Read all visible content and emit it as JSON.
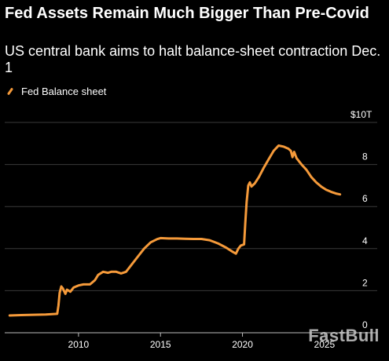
{
  "title": "Fed Assets Remain Much Bigger Than Pre-Covid",
  "subtitle": "US central bank aims to halt balance-sheet contraction Dec. 1",
  "watermark": "FastBull",
  "colors": {
    "background": "#000000",
    "line": "#f59a3a",
    "grid": "#3a3a3a"
  },
  "chart_data": {
    "type": "line",
    "title": "Fed Assets Remain Much Bigger Than Pre-Covid",
    "subtitle": "US central bank aims to halt balance-sheet contraction Dec. 1",
    "xlabel": "",
    "ylabel": "",
    "xlim": [
      2005.5,
      2026.3
    ],
    "ylim": [
      0,
      10
    ],
    "grid": true,
    "legend": "top-left",
    "x_ticks": [
      2010,
      2015,
      2020,
      2025
    ],
    "x_tick_labels": [
      "2010",
      "2015",
      "2020",
      "2025"
    ],
    "y_ticks": [
      0,
      2,
      4,
      6,
      8,
      10
    ],
    "y_tick_labels": [
      "0",
      "2",
      "4",
      "6",
      "8",
      "$10T"
    ],
    "series": [
      {
        "name": "Fed Balance sheet",
        "color": "#f59a3a",
        "points": [
          [
            2005.8,
            0.82
          ],
          [
            2006.5,
            0.84
          ],
          [
            2007.0,
            0.85
          ],
          [
            2007.5,
            0.86
          ],
          [
            2008.0,
            0.87
          ],
          [
            2008.5,
            0.89
          ],
          [
            2008.7,
            0.9
          ],
          [
            2008.78,
            1.3
          ],
          [
            2008.85,
            1.9
          ],
          [
            2008.95,
            2.2
          ],
          [
            2009.05,
            2.1
          ],
          [
            2009.2,
            1.85
          ],
          [
            2009.3,
            2.05
          ],
          [
            2009.5,
            1.95
          ],
          [
            2009.7,
            2.15
          ],
          [
            2010.0,
            2.25
          ],
          [
            2010.3,
            2.3
          ],
          [
            2010.7,
            2.3
          ],
          [
            2011.0,
            2.5
          ],
          [
            2011.2,
            2.75
          ],
          [
            2011.5,
            2.9
          ],
          [
            2011.8,
            2.85
          ],
          [
            2012.0,
            2.9
          ],
          [
            2012.3,
            2.9
          ],
          [
            2012.6,
            2.82
          ],
          [
            2012.9,
            2.9
          ],
          [
            2013.2,
            3.2
          ],
          [
            2013.6,
            3.6
          ],
          [
            2014.0,
            4.0
          ],
          [
            2014.4,
            4.3
          ],
          [
            2014.8,
            4.45
          ],
          [
            2015.0,
            4.5
          ],
          [
            2015.5,
            4.48
          ],
          [
            2016.0,
            4.48
          ],
          [
            2016.5,
            4.47
          ],
          [
            2017.0,
            4.46
          ],
          [
            2017.5,
            4.46
          ],
          [
            2018.0,
            4.4
          ],
          [
            2018.5,
            4.25
          ],
          [
            2019.0,
            4.05
          ],
          [
            2019.4,
            3.85
          ],
          [
            2019.6,
            3.76
          ],
          [
            2019.75,
            4.0
          ],
          [
            2019.9,
            4.15
          ],
          [
            2020.1,
            4.2
          ],
          [
            2020.17,
            5.2
          ],
          [
            2020.25,
            6.2
          ],
          [
            2020.35,
            7.0
          ],
          [
            2020.45,
            7.15
          ],
          [
            2020.55,
            6.95
          ],
          [
            2020.75,
            7.1
          ],
          [
            2021.0,
            7.4
          ],
          [
            2021.3,
            7.85
          ],
          [
            2021.6,
            8.25
          ],
          [
            2021.9,
            8.65
          ],
          [
            2022.2,
            8.9
          ],
          [
            2022.5,
            8.85
          ],
          [
            2022.8,
            8.75
          ],
          [
            2022.95,
            8.65
          ],
          [
            2023.05,
            8.35
          ],
          [
            2023.15,
            8.6
          ],
          [
            2023.3,
            8.3
          ],
          [
            2023.6,
            8.0
          ],
          [
            2023.9,
            7.75
          ],
          [
            2024.2,
            7.4
          ],
          [
            2024.5,
            7.15
          ],
          [
            2024.8,
            6.95
          ],
          [
            2025.1,
            6.8
          ],
          [
            2025.4,
            6.7
          ],
          [
            2025.7,
            6.62
          ],
          [
            2025.95,
            6.58
          ]
        ]
      }
    ]
  }
}
